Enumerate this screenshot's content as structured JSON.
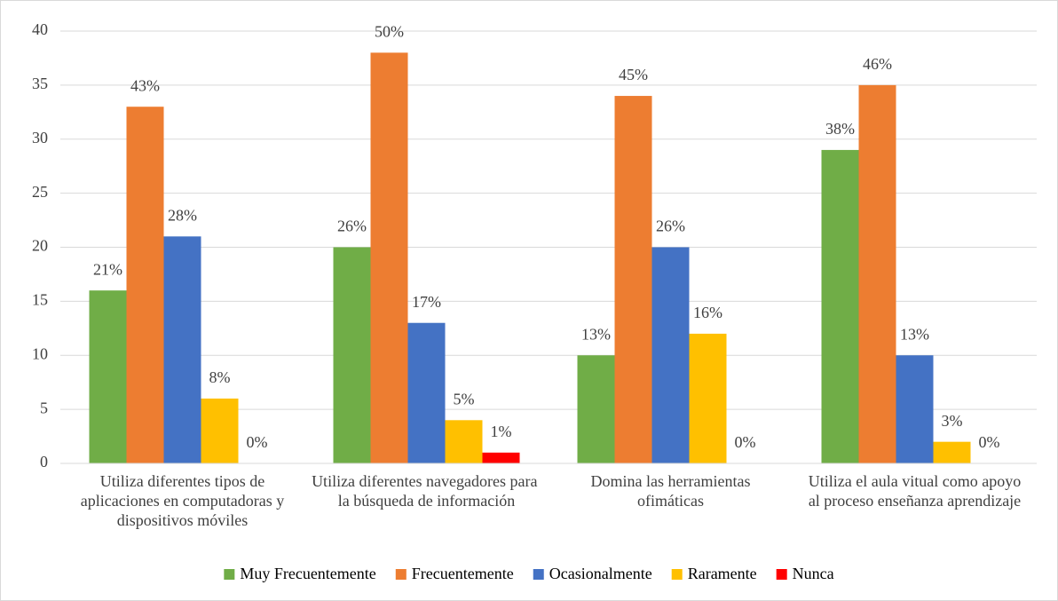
{
  "chart_data": {
    "type": "bar",
    "categories": [
      "Utiliza diferentes tipos de aplicaciones en computadoras y dispositivos móviles",
      "Utiliza diferentes navegadores para  la búsqueda de información",
      "Domina las herramientas ofimáticas",
      "Utiliza el aula vitual como apoyo al proceso enseñanza aprendizaje"
    ],
    "series": [
      {
        "name": "Muy Frecuentemente",
        "color": "#70ad47",
        "values": [
          16,
          20,
          10,
          29
        ],
        "value_labels": [
          "21%",
          "26%",
          "13%",
          "38%"
        ]
      },
      {
        "name": "Frecuentemente",
        "color": "#ed7d31",
        "values": [
          33,
          38,
          34,
          35
        ],
        "value_labels": [
          "43%",
          "50%",
          "45%",
          "46%"
        ]
      },
      {
        "name": "Ocasionalmente",
        "color": "#4472c4",
        "values": [
          21,
          13,
          20,
          10
        ],
        "value_labels": [
          "28%",
          "17%",
          "26%",
          "13%"
        ]
      },
      {
        "name": "Raramente",
        "color": "#ffc000",
        "values": [
          6,
          4,
          12,
          2
        ],
        "value_labels": [
          "8%",
          "5%",
          "16%",
          "3%"
        ]
      },
      {
        "name": "Nunca",
        "color": "#ff0000",
        "values": [
          0,
          1,
          0,
          0
        ],
        "value_labels": [
          "0%",
          "1%",
          "0%",
          "0%"
        ]
      }
    ],
    "ylim": [
      0,
      40
    ],
    "yticks": [
      0,
      5,
      10,
      15,
      20,
      25,
      30,
      35,
      40
    ],
    "grid": true,
    "legend": "bottom"
  }
}
